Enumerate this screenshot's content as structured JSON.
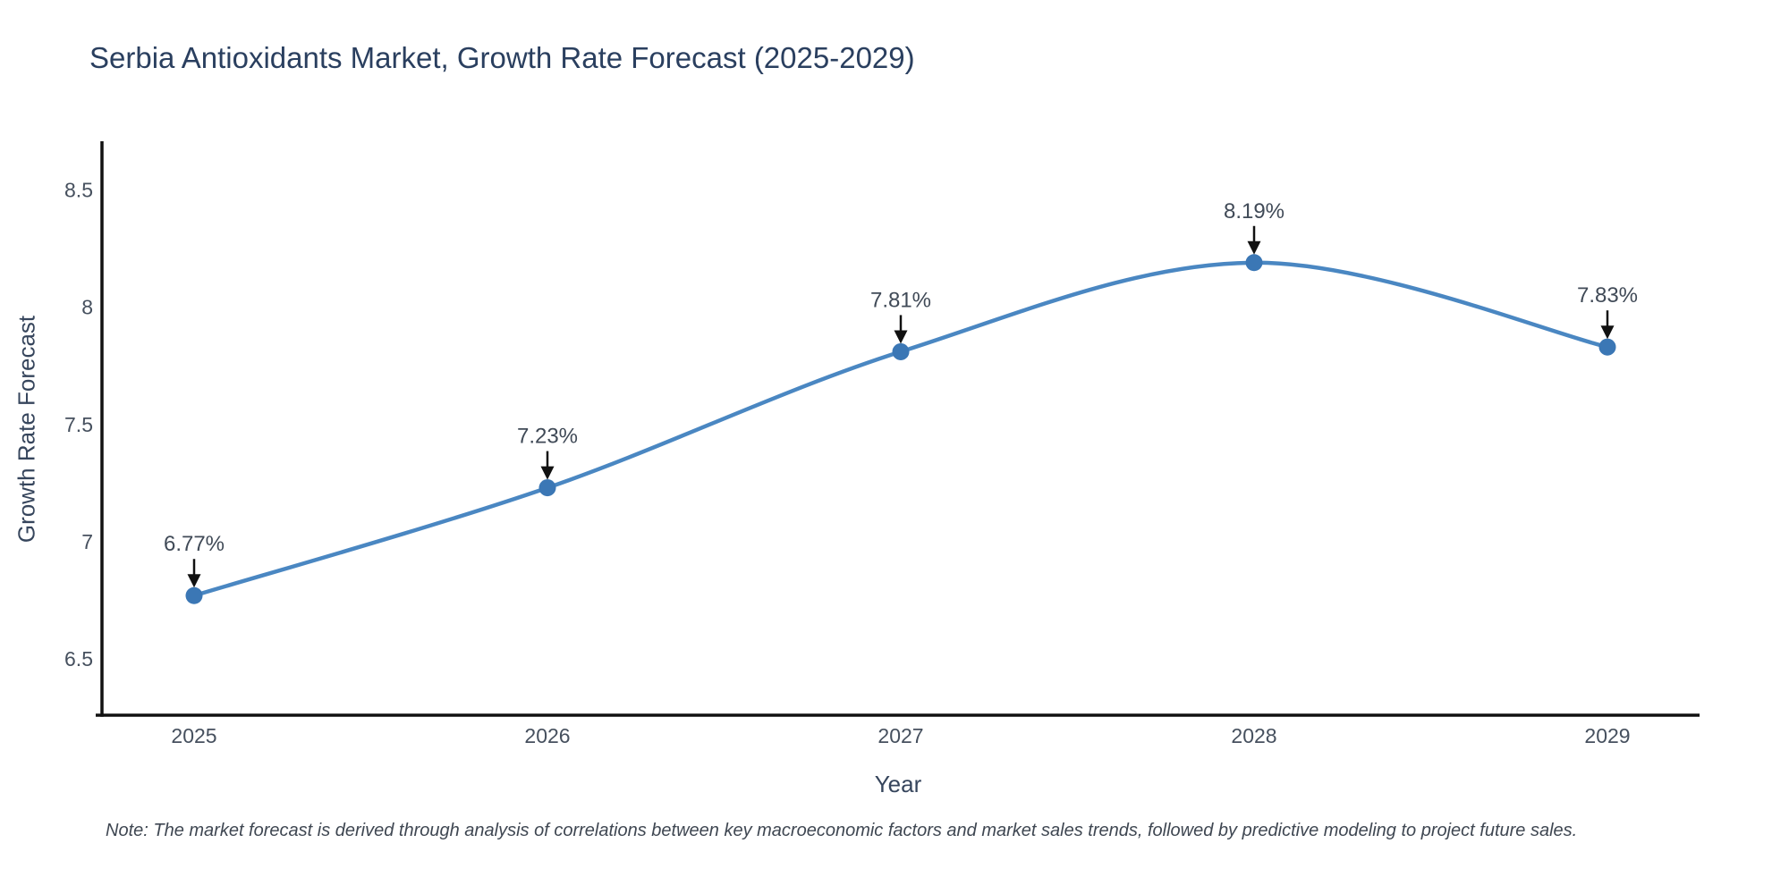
{
  "note": "Note: The market forecast is derived through analysis of correlations between key macroeconomic factors and market sales trends, followed by predictive modeling to project future sales.",
  "chart_data": {
    "type": "line",
    "title": "Serbia Antioxidants Market, Growth Rate Forecast (2025-2029)",
    "xlabel": "Year",
    "ylabel": "Growth Rate Forecast",
    "categories": [
      2025,
      2026,
      2027,
      2028,
      2029
    ],
    "values": [
      6.77,
      7.23,
      7.81,
      8.19,
      7.83
    ],
    "point_labels": [
      "6.77%",
      "7.23%",
      "7.81%",
      "8.19%",
      "7.83%"
    ],
    "yticks": [
      6.5,
      7,
      7.5,
      8,
      8.5
    ],
    "ylim": [
      6.26,
      8.7
    ],
    "grid": false,
    "legend": "none",
    "line_shape": "spline",
    "annotation_style": "down-arrow",
    "colors": {
      "line": "#4a87c2",
      "marker": "#3b77b5",
      "axis": "#111111",
      "arrow": "#111111",
      "title_text": "#2a3f5f",
      "tick_text": "#46505e",
      "annotation_text": "#404a57"
    }
  }
}
